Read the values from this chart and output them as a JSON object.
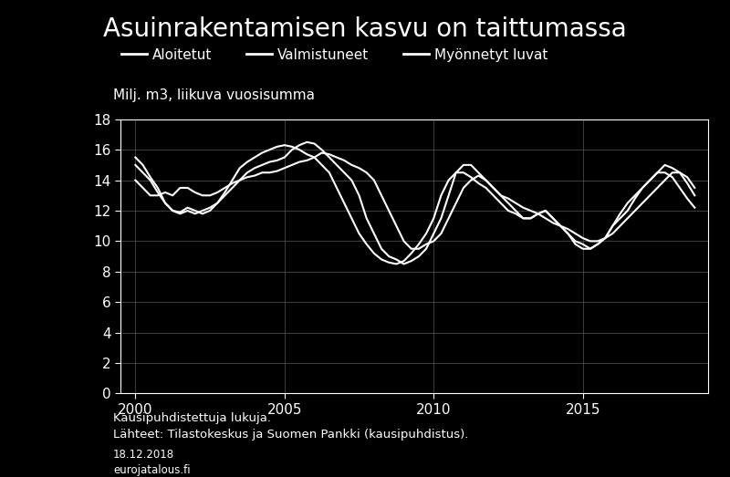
{
  "title": "Asuinrakentamisen kasvu on taittumassa",
  "ylabel": "Milj. m3, liikuva vuosisumma",
  "legend_labels": [
    "Aloitetut",
    "Valmistuneet",
    "Myönnetyt luvat"
  ],
  "footnote1": "Kausipuhdistettuja lukuja.",
  "footnote2": "Lähteet: Tilastokeskus ja Suomen Pankki (kausipuhdistus).",
  "footnote3": "18.12.2018",
  "footnote4": "eurojatalous.fi",
  "xlim": [
    1999.5,
    2019.2
  ],
  "ylim": [
    0,
    18
  ],
  "yticks": [
    0,
    2,
    4,
    6,
    8,
    10,
    12,
    14,
    16,
    18
  ],
  "xticks": [
    2000,
    2005,
    2010,
    2015
  ],
  "background_color": "#000000",
  "text_color": "#ffffff",
  "grid_color": "#555555",
  "line_color": "#ffffff",
  "line_width": 1.5,
  "title_fontsize": 20,
  "label_fontsize": 11,
  "tick_fontsize": 11,
  "footnote_fontsize": 9.5,
  "t": [
    2000.0,
    2000.25,
    2000.5,
    2000.75,
    2001.0,
    2001.25,
    2001.5,
    2001.75,
    2002.0,
    2002.25,
    2002.5,
    2002.75,
    2003.0,
    2003.25,
    2003.5,
    2003.75,
    2004.0,
    2004.25,
    2004.5,
    2004.75,
    2005.0,
    2005.25,
    2005.5,
    2005.75,
    2006.0,
    2006.25,
    2006.5,
    2006.75,
    2007.0,
    2007.25,
    2007.5,
    2007.75,
    2008.0,
    2008.25,
    2008.5,
    2008.75,
    2009.0,
    2009.25,
    2009.5,
    2009.75,
    2010.0,
    2010.25,
    2010.5,
    2010.75,
    2011.0,
    2011.25,
    2011.5,
    2011.75,
    2012.0,
    2012.25,
    2012.5,
    2012.75,
    2013.0,
    2013.25,
    2013.5,
    2013.75,
    2014.0,
    2014.25,
    2014.5,
    2014.75,
    2015.0,
    2015.25,
    2015.5,
    2015.75,
    2016.0,
    2016.25,
    2016.5,
    2016.75,
    2017.0,
    2017.25,
    2017.5,
    2017.75,
    2018.0,
    2018.25,
    2018.5,
    2018.75
  ],
  "aloitetut": [
    15.0,
    14.5,
    14.0,
    13.2,
    12.5,
    12.0,
    11.8,
    12.0,
    11.8,
    12.0,
    12.2,
    12.5,
    13.0,
    13.5,
    14.0,
    14.5,
    14.8,
    15.0,
    15.2,
    15.3,
    15.5,
    16.0,
    16.3,
    16.5,
    16.4,
    16.0,
    15.5,
    15.0,
    14.5,
    14.0,
    13.0,
    11.5,
    10.5,
    9.5,
    9.0,
    8.8,
    8.5,
    8.7,
    9.0,
    9.5,
    10.5,
    11.5,
    13.0,
    14.5,
    15.0,
    15.0,
    14.5,
    14.0,
    13.5,
    13.0,
    12.5,
    12.0,
    11.5,
    11.5,
    11.8,
    12.0,
    11.5,
    11.0,
    10.5,
    10.0,
    9.8,
    9.5,
    9.8,
    10.2,
    11.0,
    11.5,
    12.0,
    12.8,
    13.5,
    14.0,
    14.5,
    15.0,
    14.8,
    14.5,
    13.8,
    13.0
  ],
  "valmistuneet": [
    14.0,
    13.5,
    13.0,
    13.0,
    13.2,
    13.0,
    13.5,
    13.5,
    13.2,
    13.0,
    13.0,
    13.2,
    13.5,
    13.8,
    14.0,
    14.2,
    14.3,
    14.5,
    14.5,
    14.6,
    14.8,
    15.0,
    15.2,
    15.3,
    15.5,
    15.8,
    15.7,
    15.5,
    15.3,
    15.0,
    14.8,
    14.5,
    14.0,
    13.0,
    12.0,
    11.0,
    10.0,
    9.5,
    9.5,
    9.8,
    10.0,
    10.5,
    11.5,
    12.5,
    13.5,
    14.0,
    14.3,
    14.0,
    13.5,
    13.0,
    12.8,
    12.5,
    12.2,
    12.0,
    11.8,
    11.5,
    11.2,
    11.0,
    10.8,
    10.5,
    10.2,
    10.0,
    10.0,
    10.2,
    10.5,
    11.0,
    11.5,
    12.0,
    12.5,
    13.0,
    13.5,
    14.0,
    14.5,
    14.5,
    14.2,
    13.5
  ],
  "myonnetyt": [
    15.5,
    15.0,
    14.2,
    13.5,
    12.5,
    12.0,
    11.9,
    12.2,
    12.0,
    11.8,
    12.0,
    12.5,
    13.2,
    14.0,
    14.8,
    15.2,
    15.5,
    15.8,
    16.0,
    16.2,
    16.3,
    16.2,
    16.0,
    15.7,
    15.5,
    15.0,
    14.5,
    13.5,
    12.5,
    11.5,
    10.5,
    9.8,
    9.2,
    8.8,
    8.6,
    8.5,
    8.7,
    9.2,
    9.8,
    10.5,
    11.5,
    13.0,
    14.0,
    14.5,
    14.5,
    14.2,
    13.8,
    13.5,
    13.0,
    12.5,
    12.0,
    11.8,
    11.5,
    11.5,
    11.8,
    12.0,
    11.5,
    11.0,
    10.5,
    9.8,
    9.5,
    9.5,
    9.8,
    10.2,
    11.0,
    11.8,
    12.5,
    13.0,
    13.5,
    14.0,
    14.5,
    14.5,
    14.2,
    13.5,
    12.8,
    12.2
  ]
}
